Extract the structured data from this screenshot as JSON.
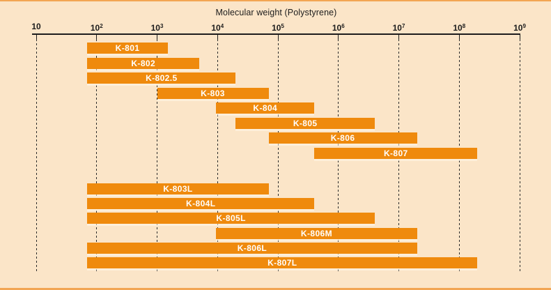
{
  "figure": {
    "title": "Molecular weight (Polystyrene)"
  },
  "chart_data": {
    "type": "bar",
    "orientation": "horizontal-range",
    "title": "Molecular weight (Polystyrene)",
    "x_scale": "log10",
    "xlim": [
      10,
      1000000000
    ],
    "grid": "dashed-vertical",
    "legend": "none",
    "x_ticks": [
      {
        "base": "10",
        "exp": "",
        "value": 10
      },
      {
        "base": "10",
        "exp": "2",
        "value": 100
      },
      {
        "base": "10",
        "exp": "3",
        "value": 1000
      },
      {
        "base": "10",
        "exp": "4",
        "value": 10000
      },
      {
        "base": "10",
        "exp": "5",
        "value": 100000
      },
      {
        "base": "10",
        "exp": "6",
        "value": 1000000
      },
      {
        "base": "10",
        "exp": "7",
        "value": 10000000
      },
      {
        "base": "10",
        "exp": "8",
        "value": 100000000
      },
      {
        "base": "10",
        "exp": "9",
        "value": 1000000000
      }
    ],
    "bars": [
      {
        "label": "K-801",
        "group": 1,
        "range": [
          70,
          1500
        ]
      },
      {
        "label": "K-802",
        "group": 1,
        "range": [
          70,
          5000
        ]
      },
      {
        "label": "K-802.5",
        "group": 1,
        "range": [
          70,
          20000
        ]
      },
      {
        "label": "K-803",
        "group": 1,
        "range": [
          1000,
          70000
        ]
      },
      {
        "label": "K-804",
        "group": 1,
        "range": [
          9500,
          400000
        ]
      },
      {
        "label": "K-805",
        "group": 1,
        "range": [
          20000,
          4000000
        ]
      },
      {
        "label": "K-806",
        "group": 1,
        "range": [
          70000,
          20000000
        ]
      },
      {
        "label": "K-807",
        "group": 1,
        "range": [
          400000,
          200000000
        ]
      },
      {
        "label": "K-803L",
        "group": 2,
        "range": [
          70,
          70000
        ]
      },
      {
        "label": "K-804L",
        "group": 2,
        "range": [
          70,
          400000
        ]
      },
      {
        "label": "K-805L",
        "group": 2,
        "range": [
          70,
          4000000
        ]
      },
      {
        "label": "K-806M",
        "group": 2,
        "range": [
          9500,
          20000000
        ]
      },
      {
        "label": "K-806L",
        "group": 2,
        "range": [
          70,
          20000000
        ]
      },
      {
        "label": "K-807L",
        "group": 2,
        "range": [
          70,
          200000000
        ]
      }
    ]
  },
  "colors": {
    "background": "#FBE5C8",
    "bar": "#EF8A0D",
    "bar_label": "#FFFFFF",
    "axis": "#1C1C1C",
    "rule": "#F2A553"
  }
}
